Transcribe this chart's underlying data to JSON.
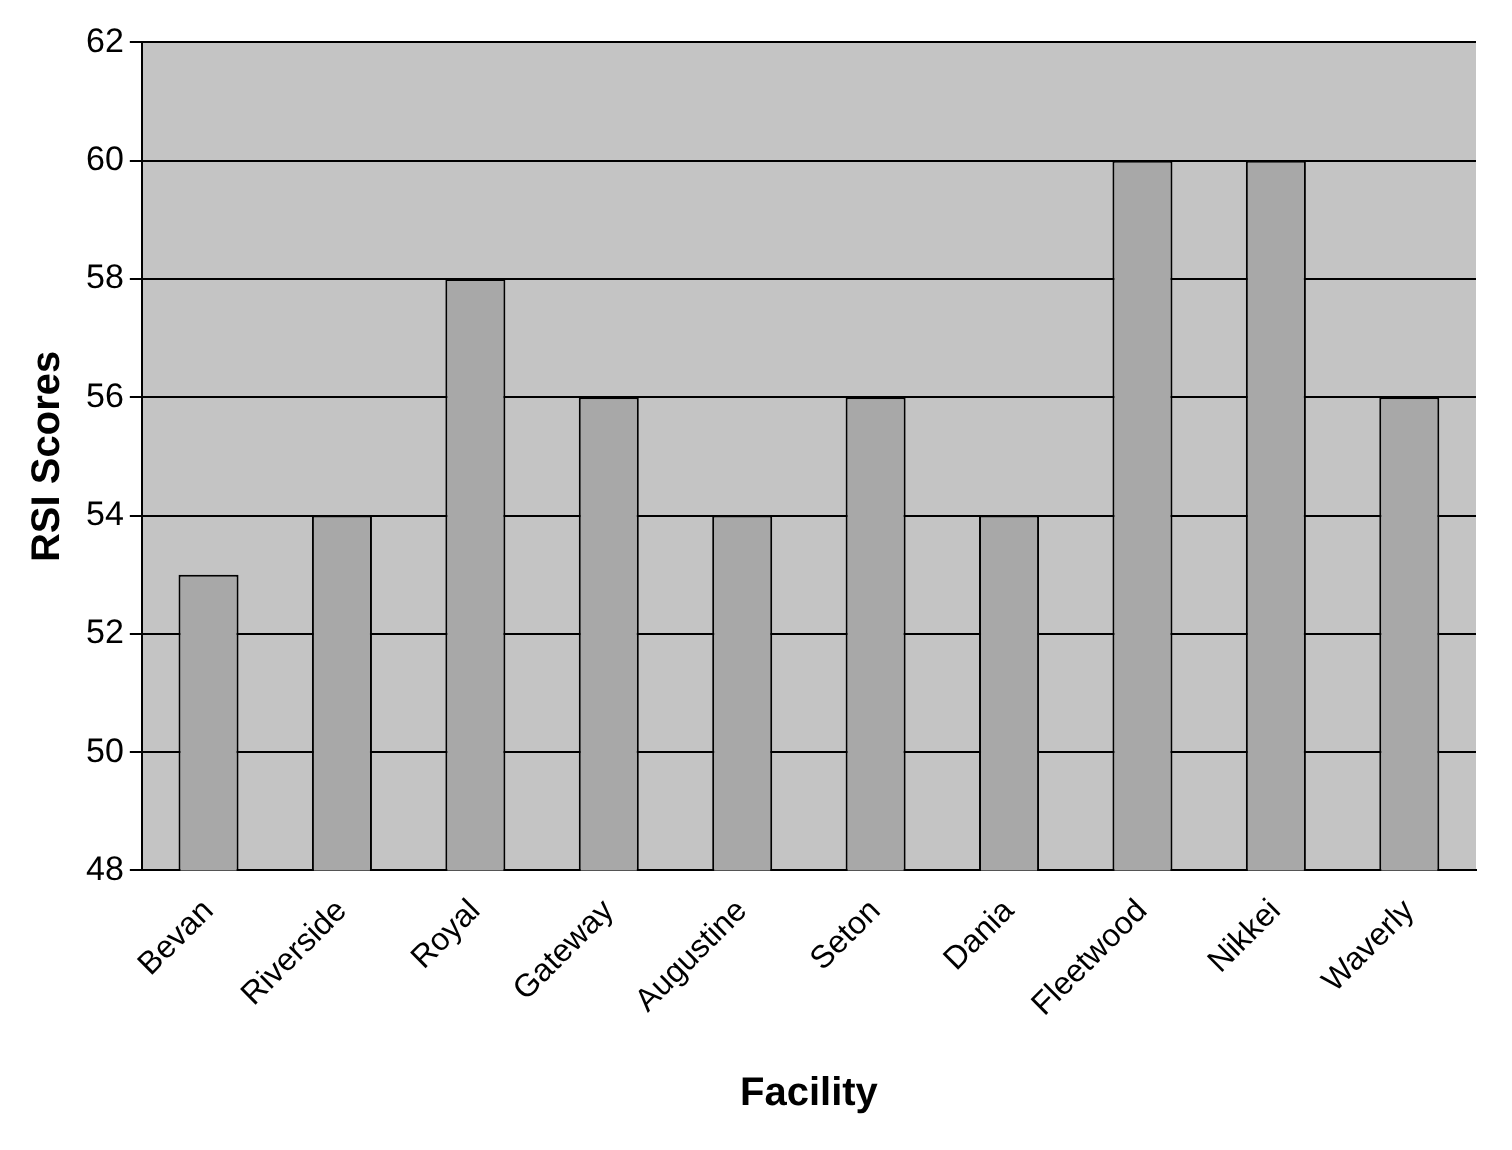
{
  "chart_data": {
    "type": "bar",
    "xlabel": "Facility",
    "ylabel": "RSI Scores",
    "categories": [
      "Bevan",
      "Riverside",
      "Royal",
      "Gateway",
      "Augustine",
      "Seton",
      "Dania",
      "Fleetwood",
      "Nikkei",
      "Waverly"
    ],
    "values": [
      53,
      54,
      58,
      56,
      54,
      56,
      54,
      60,
      60,
      56
    ],
    "color": "#a8a8a8",
    "ylim": [
      48,
      62
    ],
    "yticks": [
      48,
      50,
      52,
      54,
      56,
      58,
      60,
      62
    ],
    "grid": "y",
    "legend": false
  }
}
